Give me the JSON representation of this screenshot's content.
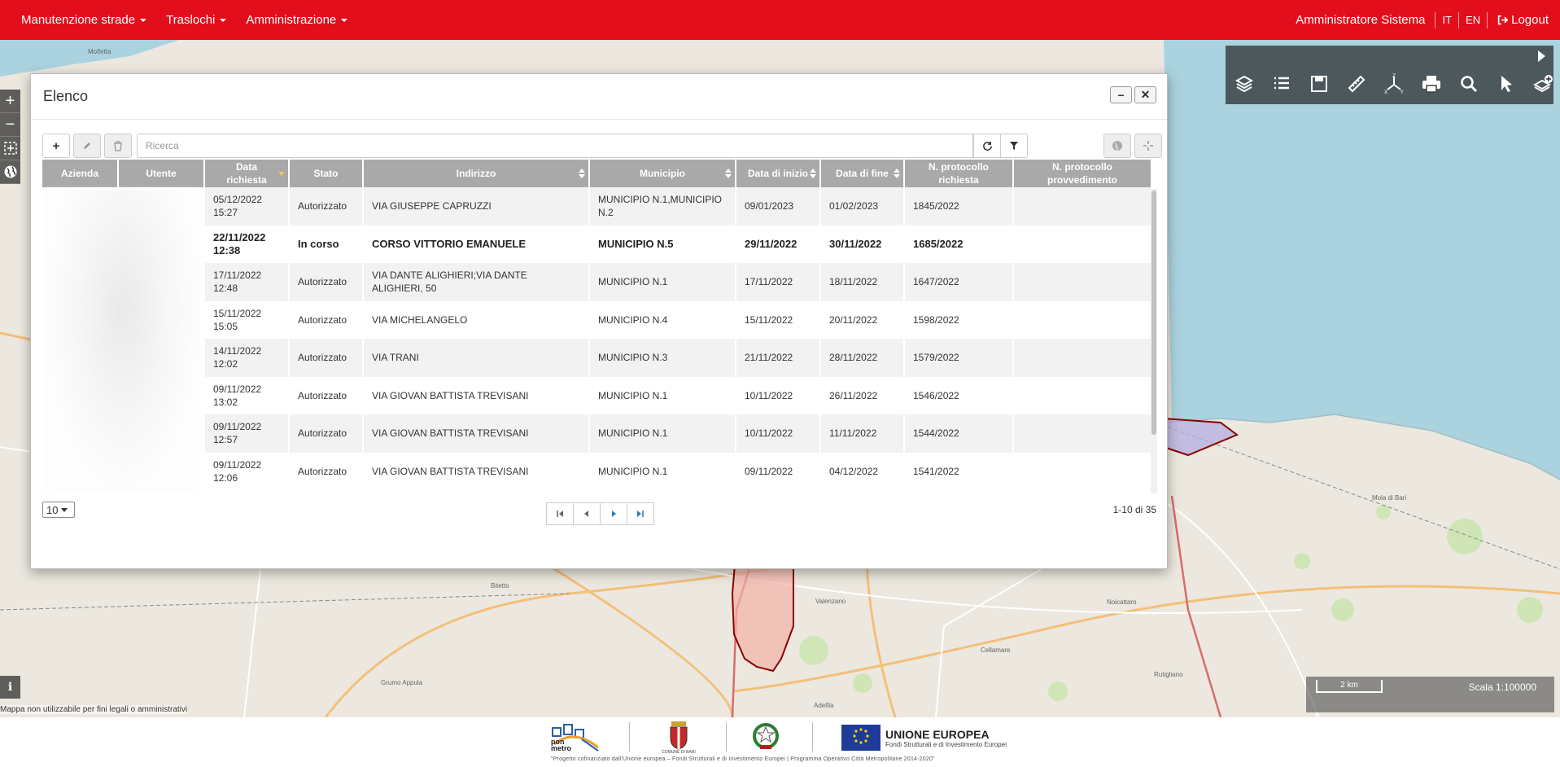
{
  "nav": {
    "menus": [
      "Manutenzione strade",
      "Traslochi",
      "Amministrazione"
    ],
    "user": "Amministratore Sistema",
    "lang_it": "IT",
    "lang_en": "EN",
    "logout": "Logout"
  },
  "map": {
    "disclaimer": "Mappa non utilizzabile per fini legali o amministrativi",
    "scalebar_label": "2 km",
    "scale": "Scala 1:100000",
    "info": "i",
    "places": [
      "Molfetta",
      "Bitetto",
      "Grumo Appula",
      "Noicattaro",
      "Adelfia",
      "Rutigliano",
      "Cellamare",
      "Mola di Bari",
      "Valenzano"
    ]
  },
  "modal": {
    "title": "Elenco",
    "search_placeholder": "Ricerca",
    "columns": [
      "Azienda",
      "Utente",
      "Data richiesta",
      "Stato",
      "Indirizzo",
      "Municipio",
      "Data di inizio",
      "Data di fine",
      "N. protocollo richiesta",
      "N. protocollo provvedimento"
    ],
    "rows": [
      {
        "data": "05/12/2022 15:27",
        "stato": "Autorizzato",
        "indirizzo": "VIA GIUSEPPE CAPRUZZI",
        "municipio": "MUNICIPIO N.1,MUNICIPIO N.2",
        "inizio": "09/01/2023",
        "fine": "01/02/2023",
        "prot": "1845/2022",
        "prov": ""
      },
      {
        "data": "22/11/2022 12:38",
        "stato": "In corso",
        "indirizzo": "CORSO VITTORIO EMANUELE",
        "municipio": "MUNICIPIO N.5",
        "inizio": "29/11/2022",
        "fine": "30/11/2022",
        "prot": "1685/2022",
        "prov": ""
      },
      {
        "data": "17/11/2022 12:48",
        "stato": "Autorizzato",
        "indirizzo": "VIA DANTE ALIGHIERI;VIA DANTE ALIGHIERI, 50",
        "municipio": "MUNICIPIO N.1",
        "inizio": "17/11/2022",
        "fine": "18/11/2022",
        "prot": "1647/2022",
        "prov": ""
      },
      {
        "data": "15/11/2022 15:05",
        "stato": "Autorizzato",
        "indirizzo": "VIA MICHELANGELO",
        "municipio": "MUNICIPIO N.4",
        "inizio": "15/11/2022",
        "fine": "20/11/2022",
        "prot": "1598/2022",
        "prov": ""
      },
      {
        "data": "14/11/2022 12:02",
        "stato": "Autorizzato",
        "indirizzo": "VIA TRANI",
        "municipio": "MUNICIPIO N.3",
        "inizio": "21/11/2022",
        "fine": "28/11/2022",
        "prot": "1579/2022",
        "prov": ""
      },
      {
        "data": "09/11/2022 13:02",
        "stato": "Autorizzato",
        "indirizzo": "VIA GIOVAN BATTISTA TREVISANI",
        "municipio": "MUNICIPIO N.1",
        "inizio": "10/11/2022",
        "fine": "26/11/2022",
        "prot": "1546/2022",
        "prov": ""
      },
      {
        "data": "09/11/2022 12:57",
        "stato": "Autorizzato",
        "indirizzo": "VIA GIOVAN BATTISTA TREVISANI",
        "municipio": "MUNICIPIO N.1",
        "inizio": "10/11/2022",
        "fine": "11/11/2022",
        "prot": "1544/2022",
        "prov": ""
      },
      {
        "data": "09/11/2022 12:06",
        "stato": "Autorizzato",
        "indirizzo": "VIA GIOVAN BATTISTA TREVISANI",
        "municipio": "MUNICIPIO N.1",
        "inizio": "09/11/2022",
        "fine": "04/12/2022",
        "prot": "1541/2022",
        "prov": ""
      }
    ],
    "page_size": "10",
    "count": "1-10 di 35"
  },
  "footer": {
    "pon": "pon metro",
    "comune": "COMUNE DI BARI",
    "ue_title": "UNIONE EUROPEA",
    "ue_sub": "Fondi Strutturali e di Investimento Europei",
    "project": "\"Progetto cofinanziato dall'Unione europea – Fondi Strutturali e di Investimento Europei | Programma Operativo Città Metropolitane 2014-2020\""
  },
  "colors": {
    "brand": "#e30e1b",
    "header": "#a9a9a9"
  },
  "icons": [
    "plus-icon",
    "pencil-icon",
    "trash-icon",
    "refresh-icon",
    "filter-icon",
    "globe-icon",
    "crosshair-icon",
    "layers-icon",
    "list-icon",
    "save-icon",
    "ruler-icon",
    "axes-icon",
    "print-icon",
    "search-icon",
    "cursor-icon",
    "add-layer-icon"
  ]
}
